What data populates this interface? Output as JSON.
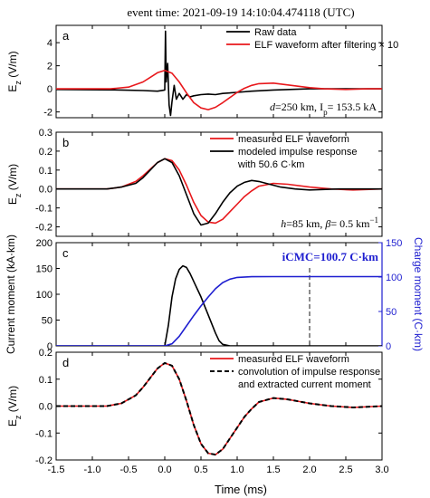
{
  "chart_data": {
    "title": "event time: 2021-09-19 14:10:04.474118 (UTC)",
    "x": {
      "label": "Time (ms)",
      "range": [
        -1.5,
        3.0
      ],
      "ticks": [
        -1.5,
        -1.0,
        -0.5,
        0.0,
        0.5,
        1.0,
        1.5,
        2.0,
        2.5,
        3.0
      ],
      "tick_labels": [
        "-1.5",
        "-1.0",
        "-0.5",
        "0.0",
        "0.5",
        "1.0",
        "1.5",
        "2.0",
        "2.5",
        "3.0"
      ]
    },
    "panels": [
      {
        "panel": "a",
        "type": "line",
        "ylabel": "E_z (V/m)",
        "ylim": [
          -2.5,
          5.5
        ],
        "yticks": [
          -2,
          0,
          2,
          4
        ],
        "ytick_labels": [
          "-2",
          "0",
          "2",
          "4"
        ],
        "legend_position": "top-right",
        "annotation": {
          "d": "d=250 km, ",
          "ip": "I",
          "ip_sub": "p",
          "ip_val": "= 153.5 kA"
        },
        "series": [
          {
            "name": "Raw data",
            "color": "#000000",
            "x": [
              -1.5,
              -0.6,
              -0.3,
              -0.1,
              0.0,
              0.01,
              0.02,
              0.04,
              0.06,
              0.08,
              0.1,
              0.13,
              0.16,
              0.2,
              0.25,
              0.3,
              0.35,
              0.4,
              0.5,
              0.6,
              0.7,
              0.8,
              1.0,
              1.2,
              1.5,
              2.0,
              2.5,
              3.0
            ],
            "y": [
              -0.05,
              -0.1,
              -0.15,
              -0.2,
              -0.1,
              5.0,
              0.6,
              2.2,
              -1.4,
              -2.3,
              -1.1,
              0.3,
              -0.9,
              -0.4,
              -0.9,
              -0.5,
              -0.7,
              -0.6,
              -0.5,
              -0.45,
              -0.5,
              -0.4,
              -0.3,
              -0.2,
              -0.1,
              0.0,
              0.0,
              0.0
            ]
          },
          {
            "name": "ELF waveform after filtering × 10",
            "color": "#e8181c",
            "x": [
              -1.5,
              -0.75,
              -0.5,
              -0.3,
              -0.2,
              -0.1,
              0.0,
              0.1,
              0.2,
              0.3,
              0.4,
              0.5,
              0.6,
              0.7,
              0.8,
              0.9,
              1.0,
              1.1,
              1.2,
              1.3,
              1.5,
              1.75,
              2.0,
              2.2,
              2.5,
              2.8,
              3.0
            ],
            "y": [
              0.0,
              0.0,
              0.15,
              0.6,
              1.0,
              1.4,
              1.6,
              1.35,
              0.6,
              -0.35,
              -1.2,
              -1.65,
              -1.8,
              -1.6,
              -1.2,
              -0.75,
              -0.3,
              0.05,
              0.3,
              0.45,
              0.5,
              0.3,
              0.1,
              0.0,
              -0.05,
              0.0,
              0.0
            ]
          }
        ]
      },
      {
        "panel": "b",
        "type": "line",
        "ylabel": "E_z (V/m)",
        "ylim": [
          -0.25,
          0.3
        ],
        "yticks": [
          -0.2,
          -0.1,
          0.0,
          0.1,
          0.2,
          0.3
        ],
        "ytick_labels": [
          "-0.2",
          "-0.1",
          "0.0",
          "0.1",
          "0.2",
          "0.3"
        ],
        "legend_position": "top-right",
        "annotation": {
          "h": "h=85 km, ",
          "beta": "β",
          "beta_val": "= 0.5 km",
          "beta_sup": "−1"
        },
        "series": [
          {
            "name": "measured ELF waveform",
            "color": "#e8181c",
            "x": [
              -1.5,
              -0.8,
              -0.6,
              -0.4,
              -0.3,
              -0.2,
              -0.1,
              0.0,
              0.1,
              0.2,
              0.3,
              0.4,
              0.5,
              0.6,
              0.7,
              0.8,
              0.9,
              1.0,
              1.1,
              1.2,
              1.3,
              1.5,
              1.7,
              2.0,
              2.3,
              2.6,
              3.0
            ],
            "y": [
              0.0,
              0.0,
              0.01,
              0.04,
              0.07,
              0.105,
              0.14,
              0.16,
              0.15,
              0.1,
              0.02,
              -0.07,
              -0.14,
              -0.175,
              -0.18,
              -0.16,
              -0.12,
              -0.08,
              -0.04,
              -0.01,
              0.015,
              0.03,
              0.025,
              0.01,
              0.0,
              -0.005,
              0.0
            ]
          },
          {
            "name": "modeled impulse response",
            "name_line2": "with 50.6 C·km",
            "color": "#000000",
            "x": [
              -1.5,
              -0.8,
              -0.6,
              -0.4,
              -0.3,
              -0.2,
              -0.1,
              0.0,
              0.1,
              0.2,
              0.3,
              0.4,
              0.5,
              0.6,
              0.7,
              0.8,
              0.9,
              1.0,
              1.1,
              1.2,
              1.3,
              1.4,
              1.6,
              1.8,
              2.0,
              2.4,
              3.0
            ],
            "y": [
              0.0,
              0.0,
              0.01,
              0.03,
              0.06,
              0.1,
              0.14,
              0.16,
              0.14,
              0.07,
              -0.03,
              -0.13,
              -0.19,
              -0.18,
              -0.13,
              -0.07,
              -0.02,
              0.015,
              0.035,
              0.045,
              0.04,
              0.03,
              0.01,
              0.0,
              -0.005,
              0.0,
              0.0
            ]
          }
        ]
      },
      {
        "panel": "c",
        "type": "line",
        "ylabel": "Current moment (kA·km)",
        "ylim": [
          0,
          200
        ],
        "yticks": [
          0,
          50,
          100,
          150,
          200
        ],
        "ytick_labels": [
          "0",
          "50",
          "100",
          "150",
          "200"
        ],
        "ylabel_right": "Charge moment (C·km)",
        "ylim_right": [
          0,
          150
        ],
        "yticks_right": [
          0,
          50,
          100,
          150
        ],
        "ytick_labels_right": [
          "0",
          "50",
          "100",
          "150"
        ],
        "right_axis_color": "#1f1fd0",
        "annotation": "iCMC=100.7 C·km",
        "vline_x": 2.0,
        "series": [
          {
            "name": "current moment",
            "axis": "left",
            "color": "#000000",
            "x": [
              -1.5,
              0.0,
              0.05,
              0.1,
              0.15,
              0.2,
              0.25,
              0.3,
              0.35,
              0.4,
              0.5,
              0.6,
              0.7,
              0.75,
              0.8,
              0.9,
              1.0,
              1.2,
              3.0
            ],
            "y": [
              0,
              0,
              40,
              95,
              130,
              148,
              155,
              152,
              140,
              125,
              95,
              60,
              25,
              10,
              3,
              0,
              0,
              0,
              0
            ]
          },
          {
            "name": "charge moment",
            "axis": "right",
            "color": "#1f1fd0",
            "x": [
              -1.5,
              0.0,
              0.1,
              0.2,
              0.3,
              0.4,
              0.5,
              0.6,
              0.7,
              0.8,
              0.9,
              1.0,
              1.2,
              1.5,
              2.0,
              3.0
            ],
            "y": [
              0,
              0,
              3,
              14,
              29,
              44,
              58,
              71,
              83,
              92,
              97,
              99.5,
              100.5,
              100.7,
              100.7,
              100.7
            ]
          }
        ]
      },
      {
        "panel": "d",
        "type": "line",
        "ylabel": "E_z (V/m)",
        "ylim": [
          -0.2,
          0.2
        ],
        "yticks": [
          -0.2,
          -0.1,
          0.0,
          0.1,
          0.2
        ],
        "ytick_labels": [
          "-0.2",
          "-0.1",
          "0.0",
          "0.1",
          "0.2"
        ],
        "legend_position": "top-right",
        "series": [
          {
            "name": "measured ELF waveform",
            "color": "#e8181c",
            "x": [
              -1.5,
              -0.8,
              -0.6,
              -0.4,
              -0.3,
              -0.2,
              -0.1,
              0.0,
              0.1,
              0.2,
              0.3,
              0.4,
              0.5,
              0.6,
              0.7,
              0.8,
              0.9,
              1.0,
              1.1,
              1.2,
              1.3,
              1.5,
              1.7,
              2.0,
              2.3,
              2.6,
              3.0
            ],
            "y": [
              0.0,
              0.0,
              0.01,
              0.04,
              0.07,
              0.105,
              0.14,
              0.16,
              0.15,
              0.1,
              0.02,
              -0.07,
              -0.14,
              -0.175,
              -0.18,
              -0.16,
              -0.12,
              -0.08,
              -0.04,
              -0.01,
              0.015,
              0.03,
              0.025,
              0.01,
              0.0,
              -0.005,
              0.0
            ]
          },
          {
            "name": "convolution of impulse response",
            "name_line2": "and extracted current moment",
            "color": "#000000",
            "dashed": true,
            "x": [
              -1.5,
              -0.8,
              -0.6,
              -0.4,
              -0.3,
              -0.2,
              -0.1,
              0.0,
              0.1,
              0.2,
              0.3,
              0.4,
              0.5,
              0.6,
              0.7,
              0.8,
              0.9,
              1.0,
              1.1,
              1.2,
              1.3,
              1.5,
              1.7,
              2.0,
              2.3,
              2.6,
              3.0
            ],
            "y": [
              0.0,
              0.0,
              0.01,
              0.04,
              0.07,
              0.105,
              0.14,
              0.16,
              0.15,
              0.1,
              0.02,
              -0.07,
              -0.14,
              -0.175,
              -0.18,
              -0.16,
              -0.12,
              -0.08,
              -0.04,
              -0.01,
              0.015,
              0.03,
              0.025,
              0.01,
              0.0,
              -0.005,
              0.0
            ]
          }
        ]
      }
    ]
  }
}
